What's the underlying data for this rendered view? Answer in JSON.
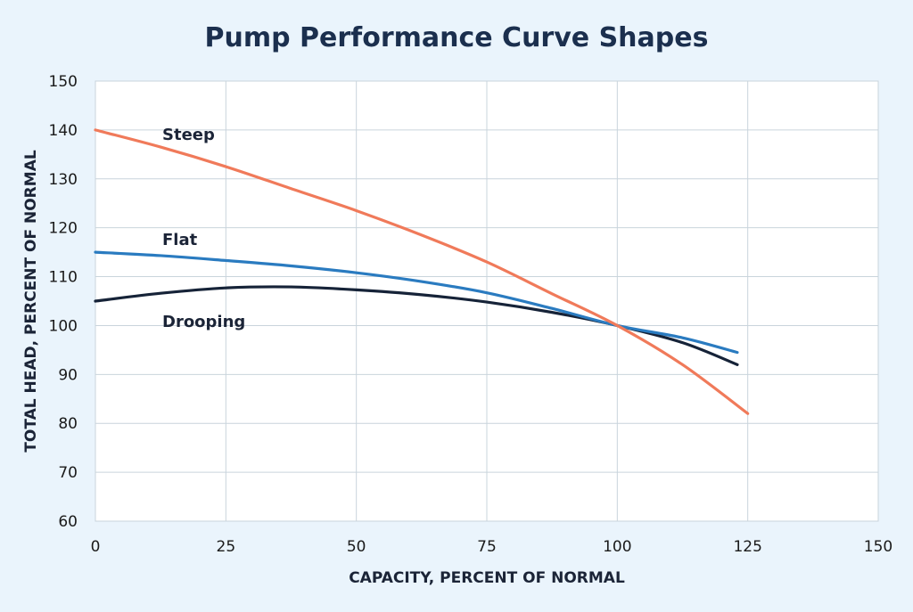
{
  "chart_data": {
    "type": "line",
    "title": "Pump Performance Curve Shapes",
    "xlabel": "CAPACITY, PERCENT OF NORMAL",
    "ylabel": "TOTAL HEAD, PERCENT OF NORMAL",
    "xlim": [
      0,
      150
    ],
    "ylim": [
      60,
      150
    ],
    "xticks": [
      0,
      25,
      50,
      75,
      100,
      125,
      150
    ],
    "yticks": [
      60,
      70,
      80,
      90,
      100,
      110,
      120,
      130,
      140,
      150
    ],
    "grid": true,
    "series": [
      {
        "name": "Steep",
        "color": "#f07a5a",
        "x": [
          0,
          12.5,
          25,
          37.5,
          50,
          62.5,
          75,
          87.5,
          100,
          112.5,
          125
        ],
        "y": [
          140,
          136.5,
          132.5,
          128,
          123.5,
          118.5,
          113,
          106.5,
          100,
          92,
          82
        ]
      },
      {
        "name": "Flat",
        "color": "#2a7bc0",
        "x": [
          0,
          12.5,
          25,
          37.5,
          50,
          62.5,
          75,
          87.5,
          100,
          112.5,
          123
        ],
        "y": [
          115,
          114.3,
          113.3,
          112.2,
          110.8,
          109,
          106.7,
          103.5,
          100,
          97.5,
          94.5
        ]
      },
      {
        "name": "Drooping",
        "color": "#162338",
        "x": [
          0,
          12.5,
          25,
          37.5,
          50,
          62.5,
          75,
          87.5,
          100,
          112.5,
          123
        ],
        "y": [
          105,
          106.6,
          107.7,
          107.9,
          107.3,
          106.3,
          104.8,
          102.7,
          100,
          96.5,
          92
        ]
      }
    ]
  }
}
